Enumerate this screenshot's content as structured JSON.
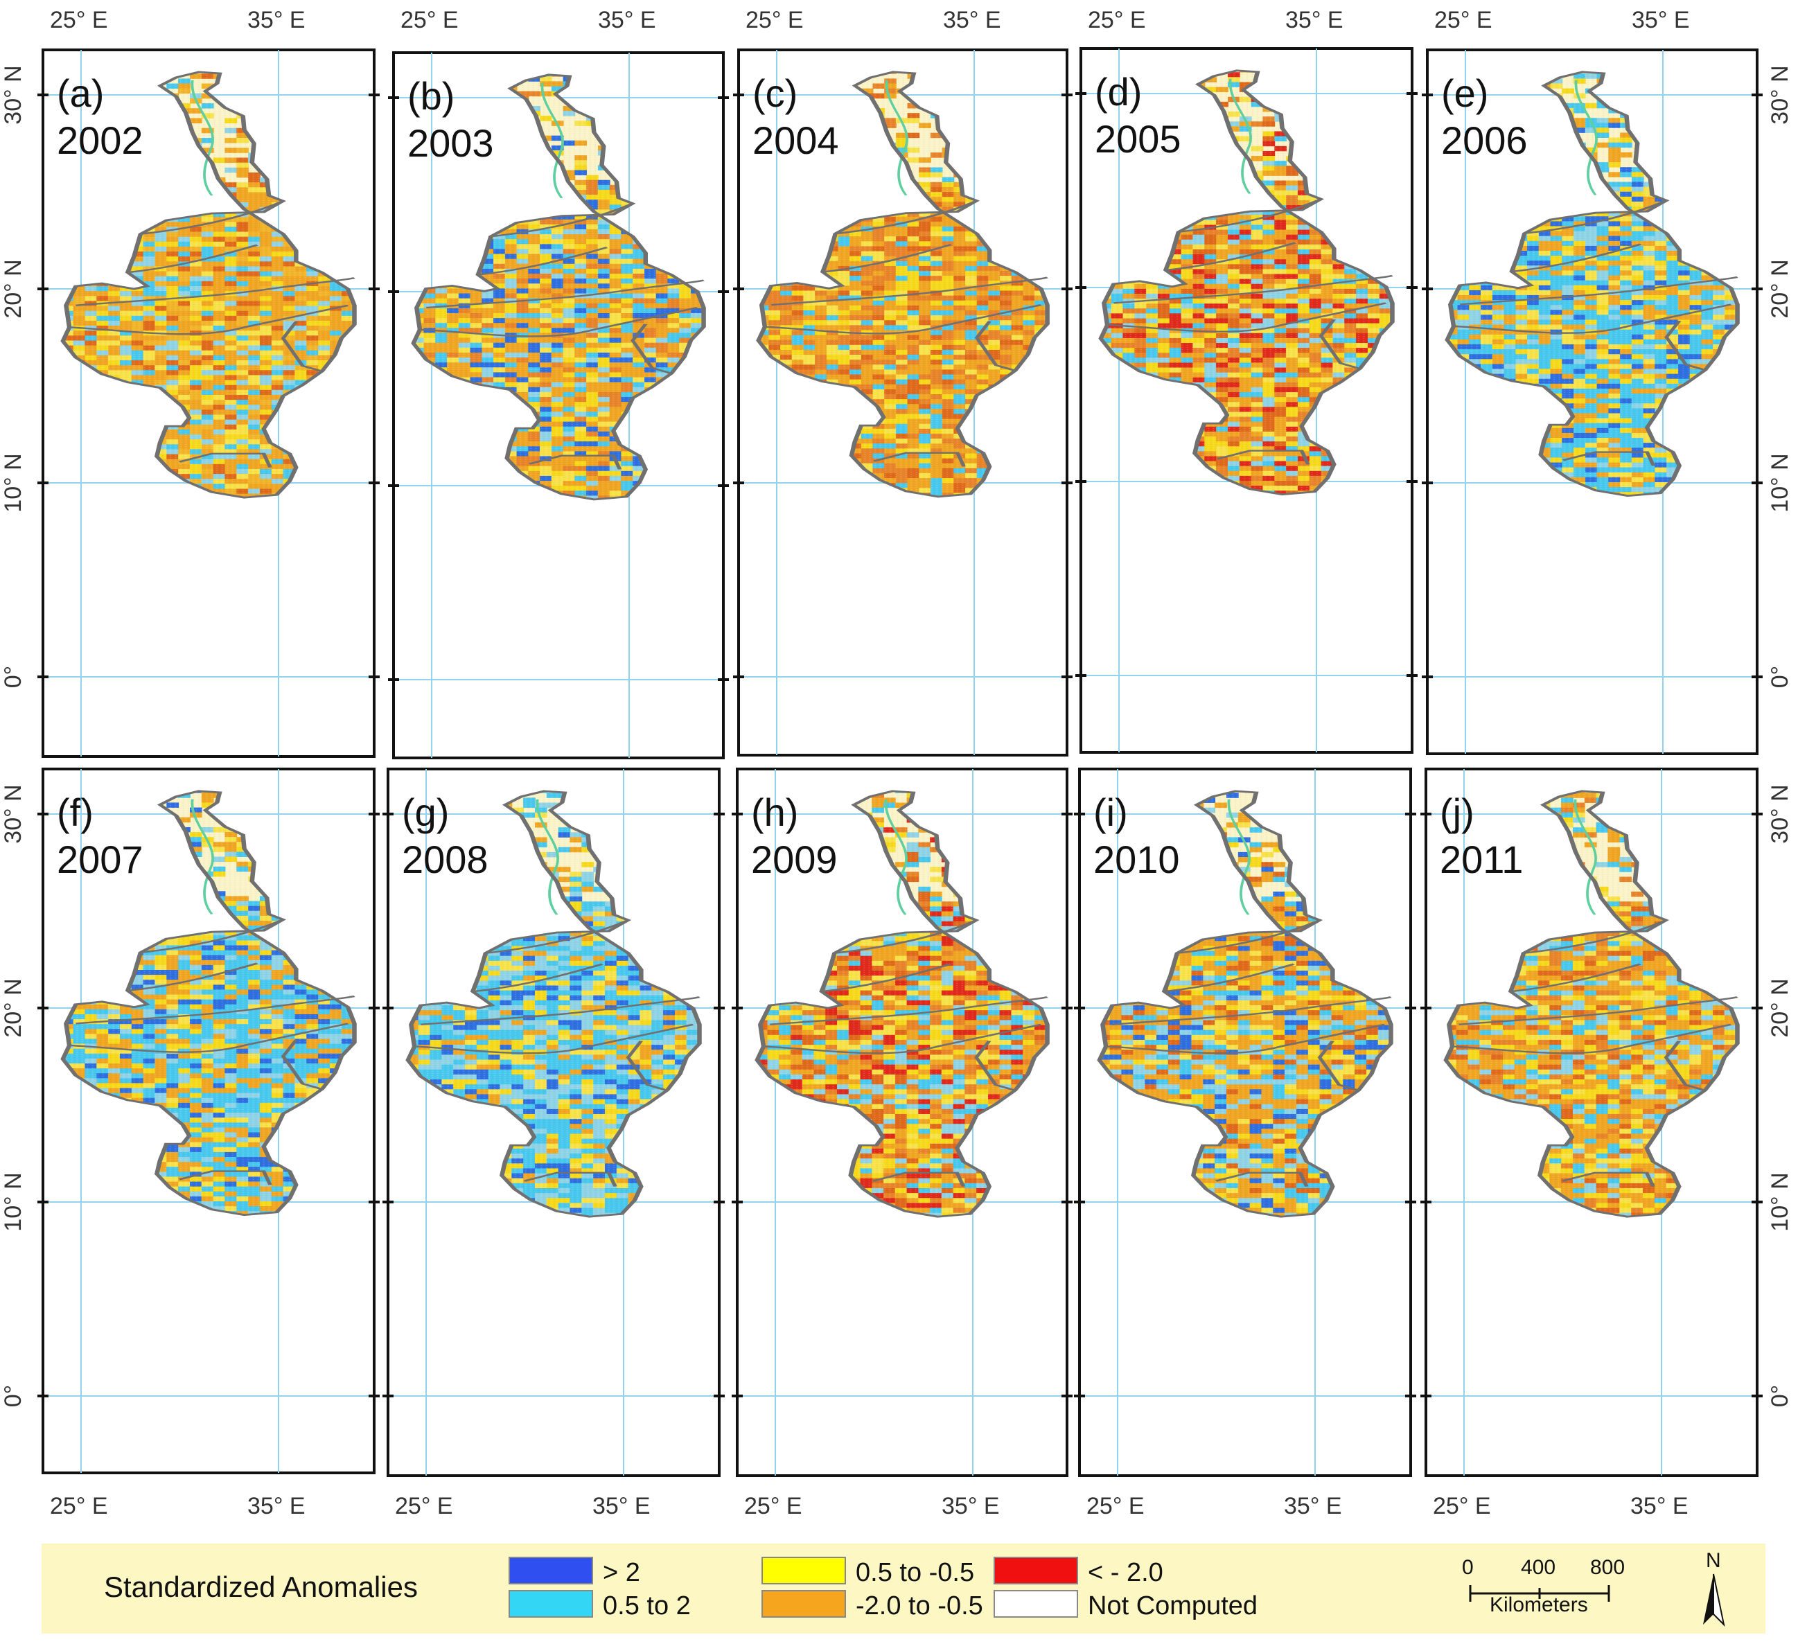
{
  "figure": {
    "panels": [
      {
        "label": "(a)",
        "year": "2002",
        "palette": [
          "#f0a623",
          "#f7d91c",
          "#f0a623",
          "#49c8ee",
          "#f7e24a",
          "#e06a1c",
          "#f0a623",
          "#8fd3e6",
          "#f2b52a"
        ]
      },
      {
        "label": "(b)",
        "year": "2003",
        "palette": [
          "#f0a623",
          "#f7d91c",
          "#49c8ee",
          "#f0a623",
          "#e8842a",
          "#f7e24a",
          "#2f6fe0",
          "#f0a623",
          "#8fd3e6"
        ]
      },
      {
        "label": "(c)",
        "year": "2004",
        "palette": [
          "#f0a623",
          "#e8842a",
          "#f7d91c",
          "#f0a623",
          "#49c8ee",
          "#e06a1c",
          "#f0a623",
          "#f7e24a",
          "#e8842a"
        ]
      },
      {
        "label": "(d)",
        "year": "2005",
        "palette": [
          "#f0a623",
          "#49c8ee",
          "#f7d91c",
          "#e8842a",
          "#e02a1c",
          "#f0a623",
          "#8fd3e6",
          "#f7e24a",
          "#e06a1c"
        ]
      },
      {
        "label": "(e)",
        "year": "2006",
        "palette": [
          "#49c8ee",
          "#f0a623",
          "#8fd3e6",
          "#49c8ee",
          "#f7d91c",
          "#2f6fe0",
          "#f0a623",
          "#49c8ee",
          "#f7e24a"
        ]
      },
      {
        "label": "(f)",
        "year": "2007",
        "palette": [
          "#49c8ee",
          "#8fd3e6",
          "#f0a623",
          "#49c8ee",
          "#f7d91c",
          "#2f6fe0",
          "#49c8ee",
          "#f7e24a",
          "#f0a623"
        ]
      },
      {
        "label": "(g)",
        "year": "2008",
        "palette": [
          "#49c8ee",
          "#8fd3e6",
          "#2f6fe0",
          "#49c8ee",
          "#f7d91c",
          "#f0a623",
          "#49c8ee",
          "#8fd3e6",
          "#f7e24a"
        ]
      },
      {
        "label": "(h)",
        "year": "2009",
        "palette": [
          "#f0a623",
          "#e8842a",
          "#f7d91c",
          "#49c8ee",
          "#e02a1c",
          "#f0a623",
          "#f7e24a",
          "#e06a1c",
          "#8fd3e6"
        ]
      },
      {
        "label": "(i)",
        "year": "2010",
        "palette": [
          "#f0a623",
          "#f7d91c",
          "#49c8ee",
          "#f0a623",
          "#e06a1c",
          "#2f6fe0",
          "#f7e24a",
          "#8fd3e6",
          "#f0a623"
        ]
      },
      {
        "label": "(j)",
        "year": "2011",
        "palette": [
          "#f0a623",
          "#f7d91c",
          "#49c8ee",
          "#f0a623",
          "#f7e24a",
          "#e06a1c",
          "#8fd3e6",
          "#f0a623",
          "#e8842a"
        ]
      }
    ],
    "axis_labels": {
      "lon": [
        "25° E",
        "35° E"
      ],
      "lat": [
        "30° N",
        "20° N",
        "10° N",
        "0°"
      ]
    },
    "legend": {
      "title": "Standardized Anomalies",
      "items": [
        {
          "label": "> 2",
          "color": "#2f4ff0"
        },
        {
          "label": "0.5 to 2",
          "color": "#33d6f5"
        },
        {
          "label": "0.5 to -0.5",
          "color": "#ffff00"
        },
        {
          "label": "-2.0 to -0.5",
          "color": "#f5a51e"
        },
        {
          "label": "< - 2.0",
          "color": "#f01010"
        },
        {
          "label": "Not Computed",
          "color": "#ffffff"
        }
      ],
      "background": "#fdf7c4"
    },
    "scale_bar": {
      "ticks": [
        "0",
        "400",
        "800"
      ],
      "unit": "Kilometers"
    },
    "north_arrow": {
      "label": "N"
    },
    "colors": {
      "boundary": "#707070",
      "grid": "#8fd3ee",
      "frame": "#111111"
    }
  }
}
